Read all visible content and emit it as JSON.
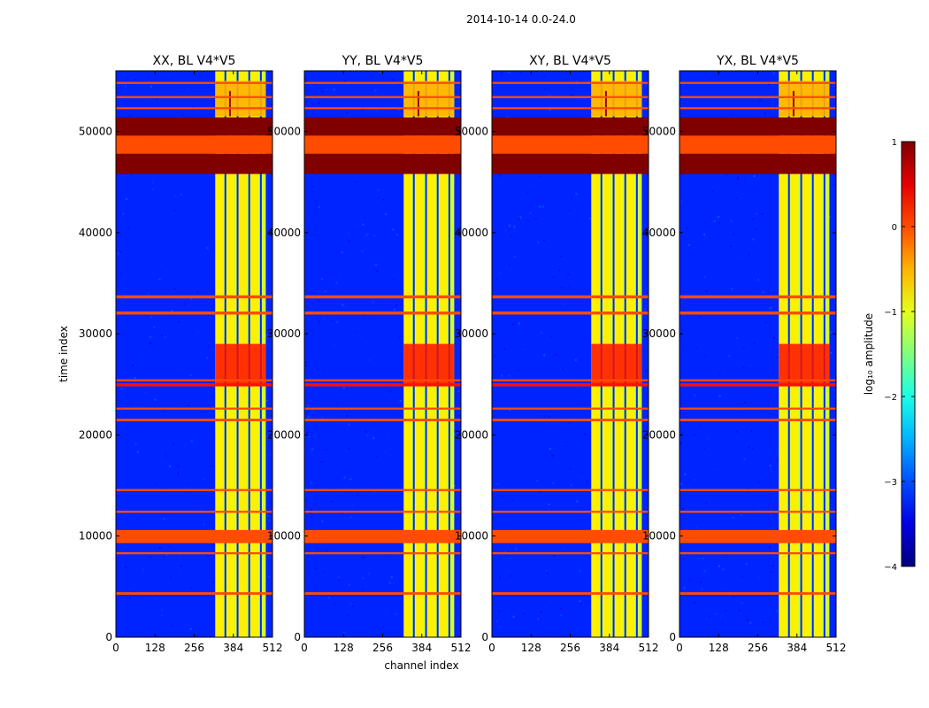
{
  "figure_title": "2014-10-14 0.0-24.0",
  "chart_data": [
    {
      "type": "heatmap",
      "title": "XX, BL V4*V5",
      "polarization": "XX",
      "baseline": "V4*V5",
      "xlabel": "",
      "ylabel": "time index",
      "xlim": [
        0,
        512
      ],
      "ylim": [
        0,
        56000
      ],
      "xticks": [
        0,
        128,
        256,
        384,
        512
      ],
      "yticks": [
        0,
        10000,
        20000,
        30000,
        40000,
        50000
      ],
      "background_log10_amplitude": -3.2,
      "signal_channel_range": [
        325,
        490
      ]
    },
    {
      "type": "heatmap",
      "title": "YY, BL V4*V5",
      "polarization": "YY",
      "baseline": "V4*V5",
      "xlabel": "channel index",
      "ylabel": "",
      "xlim": [
        0,
        512
      ],
      "ylim": [
        0,
        56000
      ],
      "xticks": [
        0,
        128,
        256,
        384,
        512
      ],
      "yticks": [
        0,
        10000,
        20000,
        30000,
        40000,
        50000
      ],
      "background_log10_amplitude": -3.2,
      "signal_channel_range": [
        325,
        490
      ]
    },
    {
      "type": "heatmap",
      "title": "XY, BL V4*V5",
      "polarization": "XY",
      "baseline": "V4*V5",
      "xlabel": "",
      "ylabel": "",
      "xlim": [
        0,
        512
      ],
      "ylim": [
        0,
        56000
      ],
      "xticks": [
        0,
        128,
        256,
        384,
        512
      ],
      "yticks": [
        0,
        10000,
        20000,
        30000,
        40000,
        50000
      ],
      "background_log10_amplitude": -3.2,
      "signal_channel_range": [
        325,
        490
      ]
    },
    {
      "type": "heatmap",
      "title": "YX, BL V4*V5",
      "polarization": "YX",
      "baseline": "V4*V5",
      "xlabel": "",
      "ylabel": "",
      "xlim": [
        0,
        512
      ],
      "ylim": [
        0,
        56000
      ],
      "xticks": [
        0,
        128,
        256,
        384,
        512
      ],
      "yticks": [
        0,
        10000,
        20000,
        30000,
        40000,
        50000
      ],
      "background_log10_amplitude": -3.2,
      "signal_channel_range": [
        325,
        490
      ]
    }
  ],
  "flagged_bands": [
    {
      "t0": 45800,
      "t1": 47800,
      "log10_amplitude": 1.0
    },
    {
      "t0": 47800,
      "t1": 49600,
      "log10_amplitude": 0.0
    },
    {
      "t0": 49600,
      "t1": 51400,
      "log10_amplitude": 1.0
    },
    {
      "t0": 9300,
      "t1": 10600,
      "log10_amplitude": 0.0
    },
    {
      "t0": 33500,
      "t1": 33800,
      "log10_amplitude": 0.0
    },
    {
      "t0": 31900,
      "t1": 32200,
      "log10_amplitude": 0.0
    },
    {
      "t0": 24800,
      "t1": 25100,
      "log10_amplitude": 0.3
    },
    {
      "t0": 25300,
      "t1": 25500,
      "log10_amplitude": 0.0
    },
    {
      "t0": 22500,
      "t1": 22700,
      "log10_amplitude": 0.0
    },
    {
      "t0": 21350,
      "t1": 21600,
      "log10_amplitude": 0.0
    },
    {
      "t0": 14450,
      "t1": 14650,
      "log10_amplitude": 0.0
    },
    {
      "t0": 12300,
      "t1": 12500,
      "log10_amplitude": 0.0
    },
    {
      "t0": 8200,
      "t1": 8400,
      "log10_amplitude": 0.0
    },
    {
      "t0": 4200,
      "t1": 4450,
      "log10_amplitude": 0.0
    },
    {
      "t0": 54700,
      "t1": 54900,
      "log10_amplitude": 0.0
    },
    {
      "t0": 53300,
      "t1": 53500,
      "log10_amplitude": 0.0
    },
    {
      "t0": 52200,
      "t1": 52400,
      "log10_amplitude": 0.0
    }
  ],
  "colorbar": {
    "label": "log₁₀ amplitude",
    "min": -4,
    "max": 1,
    "ticks": [
      {
        "value": 1,
        "label": "1"
      },
      {
        "value": 0,
        "label": "0"
      },
      {
        "value": -1,
        "label": "−1"
      },
      {
        "value": -2,
        "label": "−2"
      },
      {
        "value": -3,
        "label": "−3"
      },
      {
        "value": -4,
        "label": "−4"
      }
    ],
    "colormap": "jet"
  }
}
